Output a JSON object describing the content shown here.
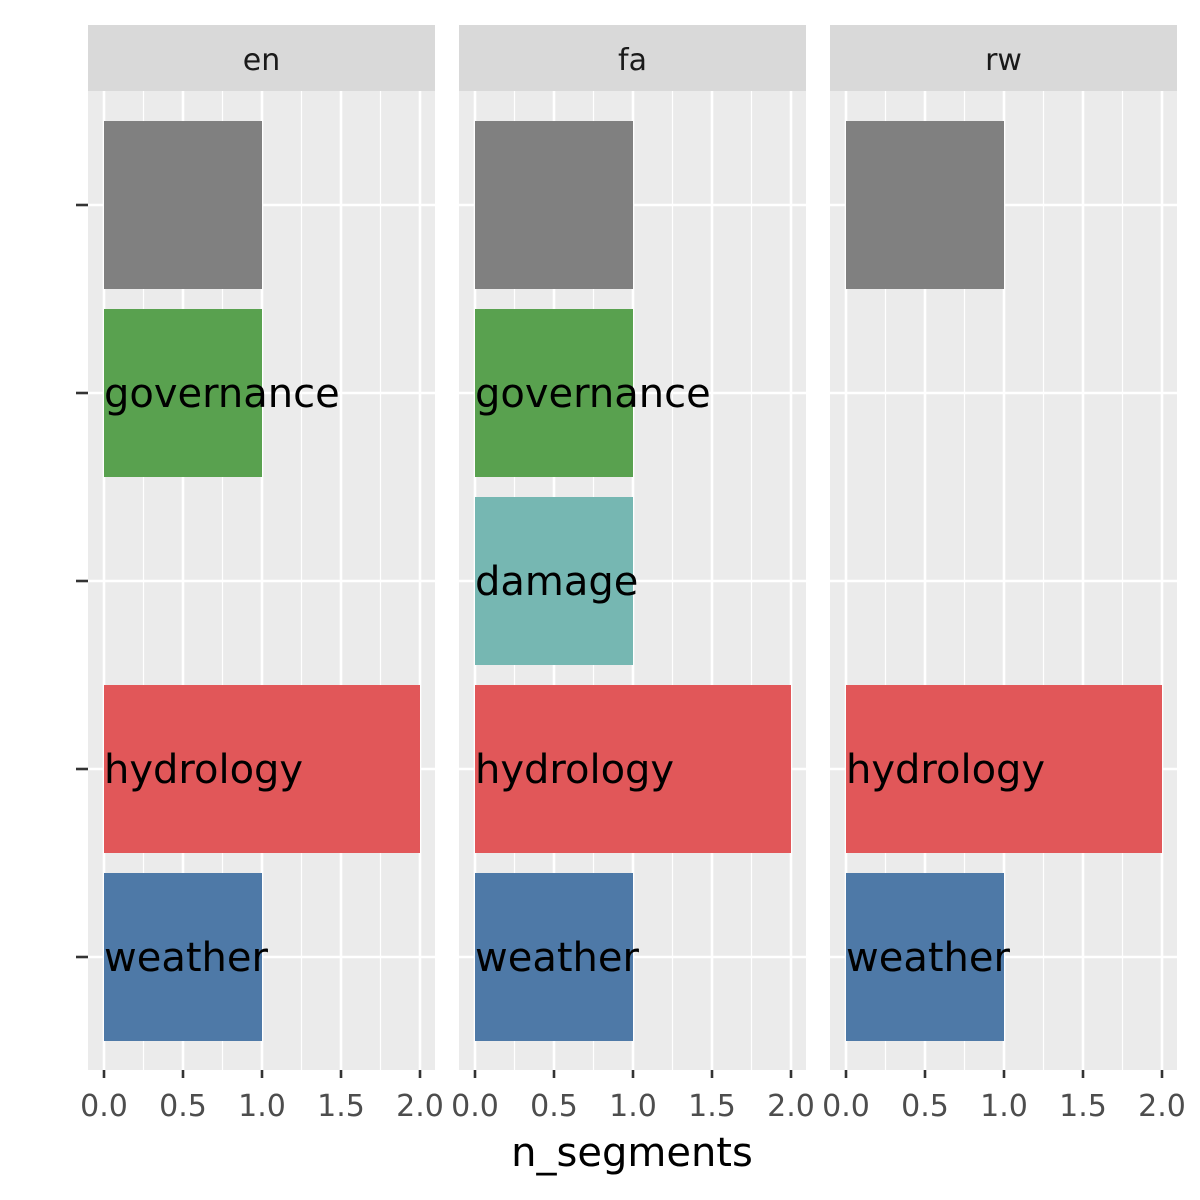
{
  "chart_data": {
    "type": "bar",
    "orientation": "horizontal",
    "facets": [
      "en",
      "fa",
      "rw"
    ],
    "categories": [
      "",
      "governance",
      "damage",
      "hydrology",
      "weather"
    ],
    "xlabel": "n_segments",
    "ylabel": "",
    "xlim": [
      0,
      2.1
    ],
    "xticks": [
      0.0,
      0.5,
      1.0,
      1.5,
      2.0
    ],
    "xtick_labels": [
      "0.0",
      "0.5",
      "1.0",
      "1.5",
      "2.0"
    ],
    "grid": true,
    "panels": [
      {
        "facet": "en",
        "values": [
          1,
          1,
          null,
          2,
          1
        ]
      },
      {
        "facet": "fa",
        "values": [
          1,
          1,
          1,
          2,
          1
        ]
      },
      {
        "facet": "rw",
        "values": [
          1,
          null,
          null,
          2,
          1
        ]
      }
    ],
    "colors": {
      "": "#808080",
      "governance": "#59a14f",
      "damage": "#76b7b2",
      "hydrology": "#e15759",
      "weather": "#4e79a7"
    },
    "panel_background": "#ebebeb",
    "strip_background": "#d9d9d9"
  }
}
